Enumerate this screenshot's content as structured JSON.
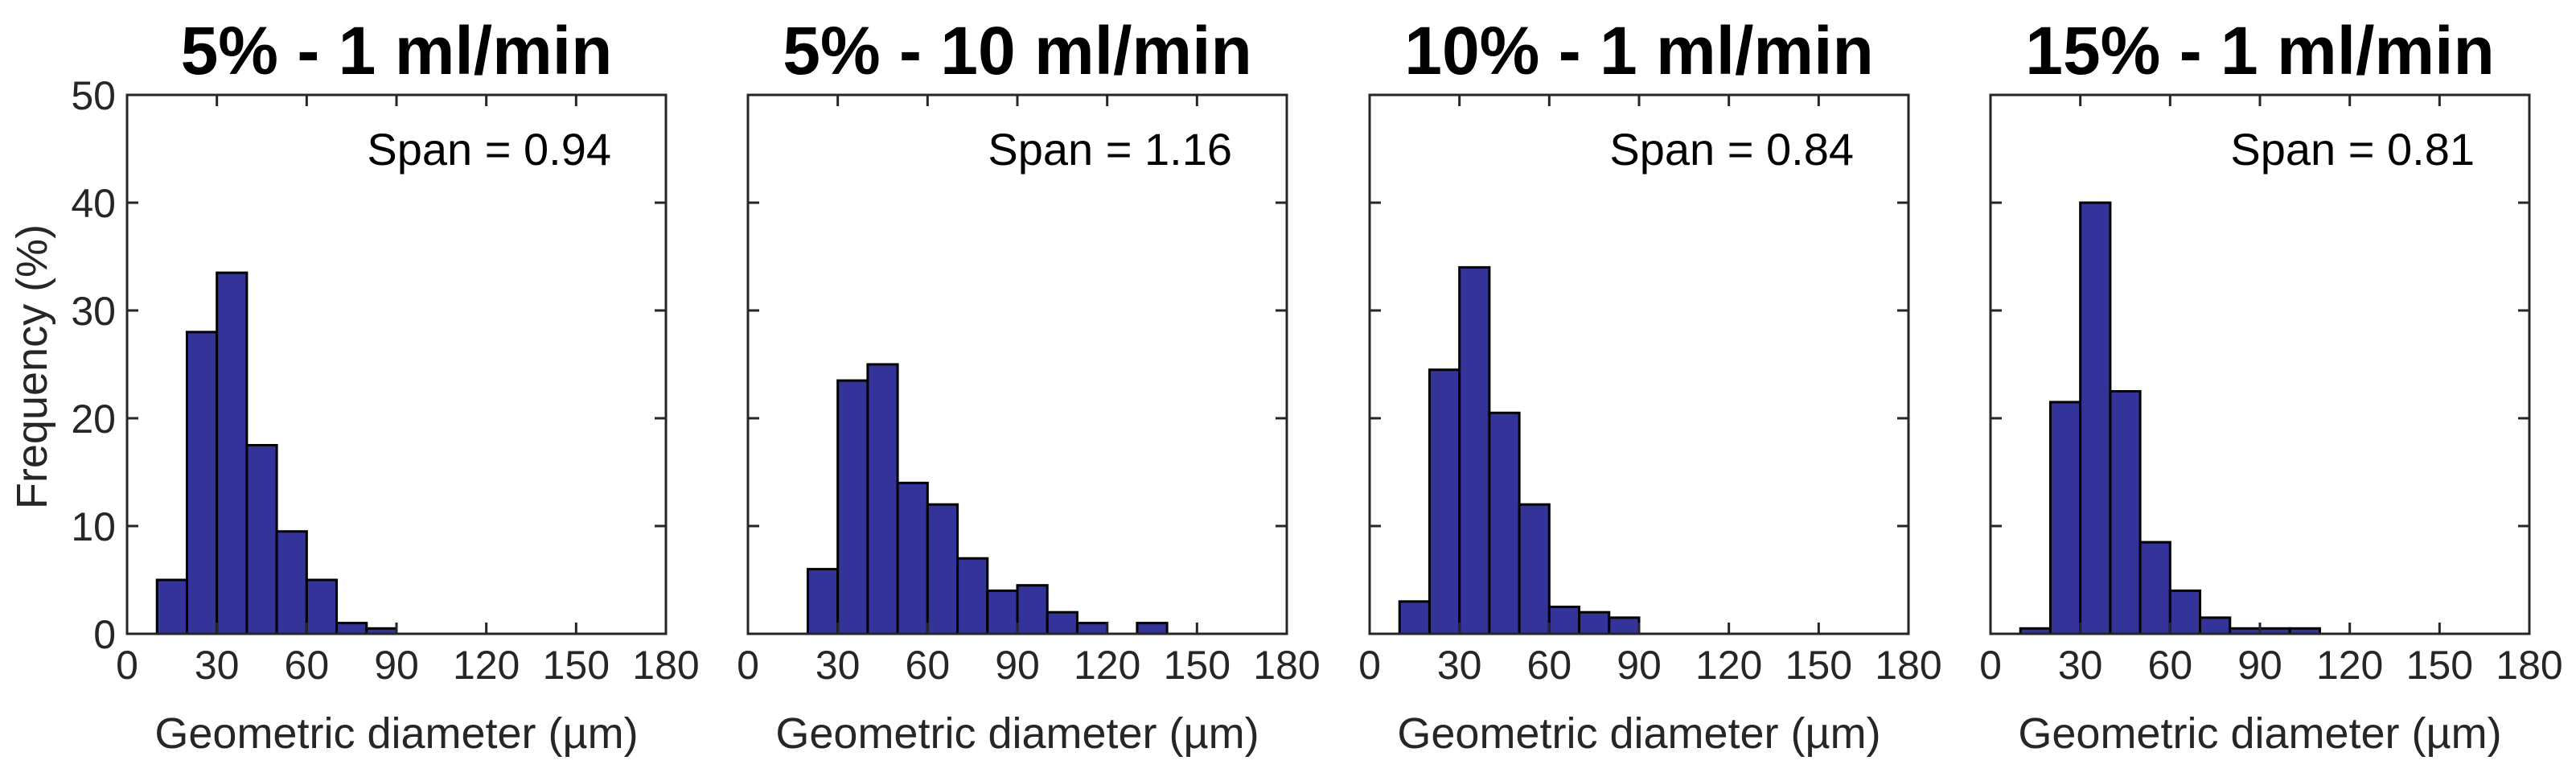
{
  "figure": {
    "ylabel": "Frequency (%)",
    "bar_color": "#333399",
    "edge_color": "#000000"
  },
  "chart_data": [
    {
      "type": "bar",
      "title": "5% - 1 ml/min",
      "annotation": "Span = 0.94",
      "xlabel": "Geometric diameter (µm)",
      "ylabel": "Frequency (%)",
      "xlim": [
        0,
        180
      ],
      "ylim": [
        0,
        50
      ],
      "xticks": [
        "0",
        "30",
        "60",
        "90",
        "120",
        "150",
        "180"
      ],
      "yticks": [
        "0",
        "10",
        "20",
        "30",
        "40",
        "50"
      ],
      "bin_width": 10,
      "bins": [
        10,
        20,
        30,
        40,
        50,
        60,
        70,
        80
      ],
      "values": [
        5,
        28,
        33.5,
        17.5,
        9.5,
        5,
        1,
        0.5
      ]
    },
    {
      "type": "bar",
      "title": "5% - 10 ml/min",
      "annotation": "Span = 1.16",
      "xlabel": "Geometric diameter (µm)",
      "ylabel": "Frequency (%)",
      "xlim": [
        0,
        180
      ],
      "ylim": [
        0,
        50
      ],
      "xticks": [
        "0",
        "30",
        "60",
        "90",
        "120",
        "150",
        "180"
      ],
      "yticks": [
        "0",
        "10",
        "20",
        "30",
        "40",
        "50"
      ],
      "bin_width": 10,
      "bins": [
        20,
        30,
        40,
        50,
        60,
        70,
        80,
        90,
        100,
        110,
        120,
        130
      ],
      "values": [
        6,
        23.5,
        25,
        14,
        12,
        7,
        4,
        4.5,
        2,
        1,
        0,
        1
      ]
    },
    {
      "type": "bar",
      "title": "10% - 1 ml/min",
      "annotation": "Span = 0.84",
      "xlabel": "Geometric diameter (µm)",
      "ylabel": "Frequency (%)",
      "xlim": [
        0,
        180
      ],
      "ylim": [
        0,
        50
      ],
      "xticks": [
        "0",
        "30",
        "60",
        "90",
        "120",
        "150",
        "180"
      ],
      "yticks": [
        "0",
        "10",
        "20",
        "30",
        "40",
        "50"
      ],
      "bin_width": 10,
      "bins": [
        10,
        20,
        30,
        40,
        50,
        60,
        70,
        80
      ],
      "values": [
        3,
        24.5,
        34,
        20.5,
        12,
        2.5,
        2,
        1.5
      ]
    },
    {
      "type": "bar",
      "title": "15% - 1 ml/min",
      "annotation": "Span = 0.81",
      "xlabel": "Geometric diameter (µm)",
      "ylabel": "Frequency (%)",
      "xlim": [
        0,
        180
      ],
      "ylim": [
        0,
        50
      ],
      "xticks": [
        "0",
        "30",
        "60",
        "90",
        "120",
        "150",
        "180"
      ],
      "yticks": [
        "0",
        "10",
        "20",
        "30",
        "40",
        "50"
      ],
      "bin_width": 10,
      "bins": [
        10,
        20,
        30,
        40,
        50,
        60,
        70,
        80,
        90,
        100
      ],
      "values": [
        0.5,
        21.5,
        40,
        22.5,
        8.5,
        4,
        1.5,
        0.5,
        0.5,
        0.5
      ]
    }
  ]
}
